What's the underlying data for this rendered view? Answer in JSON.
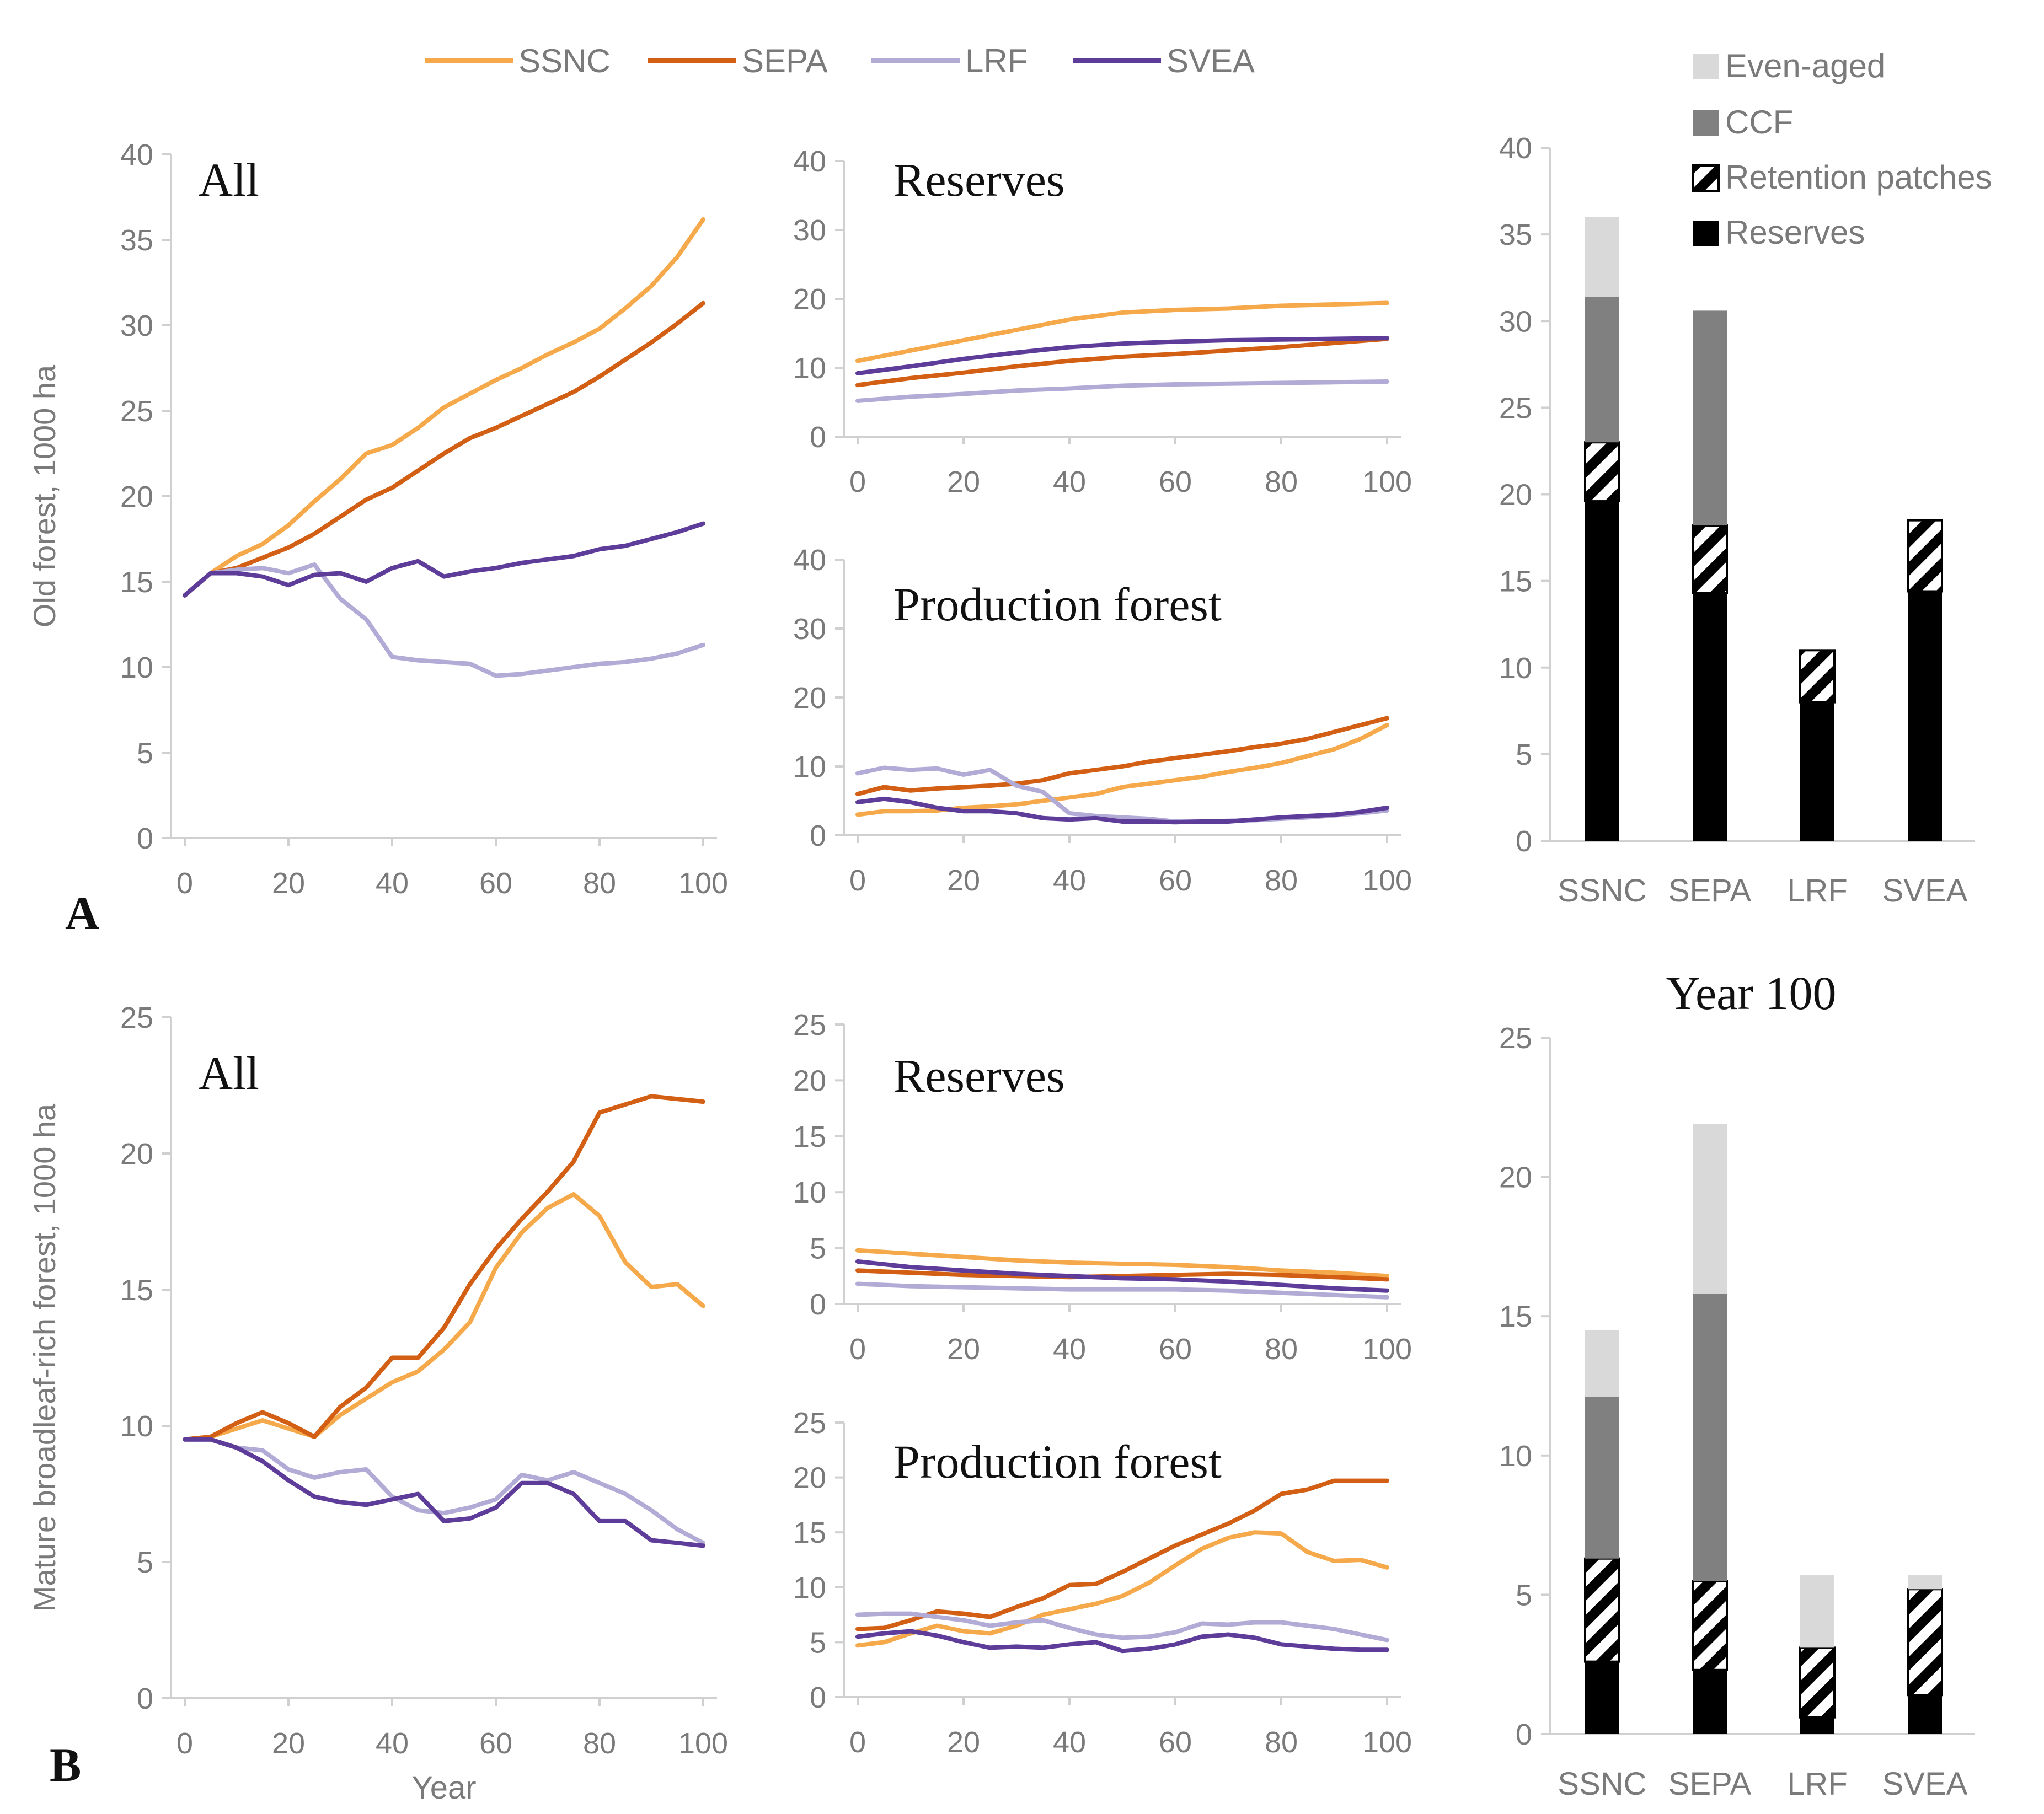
{
  "colors": {
    "SSNC": "#f5a94a",
    "SEPA": "#d25f14",
    "LRF": "#b2abd6",
    "SVEA": "#5e3c99",
    "even_aged": "#d9d9d9",
    "ccf": "#808080",
    "retention": "#000000",
    "reserves": "#000000"
  },
  "legend": {
    "series": [
      "SSNC",
      "SEPA",
      "LRF",
      "SVEA"
    ],
    "bars": [
      "Even-aged",
      "CCF",
      "Retention patches",
      "Reserves"
    ]
  },
  "panel_labels": {
    "a": "A",
    "b": "B"
  },
  "bar_panel_title": "Year 100",
  "chart_data": [
    {
      "id": "A-all",
      "type": "line",
      "title": "All",
      "panel": "A",
      "ylabel": "Old forest,  1000 ha",
      "xlabel": "",
      "ylim": [
        0,
        40
      ],
      "yticks": [
        0,
        5,
        10,
        15,
        20,
        25,
        30,
        35,
        40
      ],
      "xlim": [
        0,
        100
      ],
      "xticks": [
        0,
        20,
        40,
        60,
        80,
        100
      ],
      "x": [
        0,
        5,
        10,
        15,
        20,
        25,
        30,
        35,
        40,
        45,
        50,
        55,
        60,
        65,
        70,
        75,
        80,
        85,
        90,
        95,
        100
      ],
      "series": [
        {
          "name": "SSNC",
          "values": [
            14.2,
            15.5,
            16.5,
            17.2,
            18.3,
            19.7,
            21,
            22.5,
            23,
            24,
            25.2,
            26,
            26.8,
            27.5,
            28.3,
            29,
            29.8,
            31,
            32.3,
            34,
            36.2
          ]
        },
        {
          "name": "SEPA",
          "values": [
            14.2,
            15.5,
            15.8,
            16.4,
            17,
            17.8,
            18.8,
            19.8,
            20.5,
            21.5,
            22.5,
            23.4,
            24,
            24.7,
            25.4,
            26.1,
            27,
            28,
            29,
            30.1,
            31.3
          ]
        },
        {
          "name": "LRF",
          "values": [
            14.2,
            15.5,
            15.7,
            15.8,
            15.5,
            16,
            14,
            12.8,
            10.6,
            10.4,
            10.3,
            10.2,
            9.5,
            9.6,
            9.8,
            10,
            10.2,
            10.3,
            10.5,
            10.8,
            11.3
          ]
        },
        {
          "name": "SVEA",
          "values": [
            14.2,
            15.5,
            15.5,
            15.3,
            14.8,
            15.4,
            15.5,
            15,
            15.8,
            16.2,
            15.3,
            15.6,
            15.8,
            16.1,
            16.3,
            16.5,
            16.9,
            17.1,
            17.5,
            17.9,
            18.4
          ]
        }
      ]
    },
    {
      "id": "A-res",
      "type": "line",
      "title": "Reserves",
      "panel": "A",
      "ylim": [
        0,
        40
      ],
      "yticks": [
        0,
        10,
        20,
        30,
        40
      ],
      "xlim": [
        0,
        100
      ],
      "xticks": [
        0,
        20,
        40,
        60,
        80,
        100
      ],
      "x": [
        0,
        10,
        20,
        30,
        40,
        50,
        60,
        70,
        80,
        90,
        100
      ],
      "series": [
        {
          "name": "SSNC",
          "values": [
            11,
            12.5,
            14,
            15.5,
            17,
            18,
            18.4,
            18.6,
            19,
            19.2,
            19.4
          ]
        },
        {
          "name": "SEPA",
          "values": [
            7.5,
            8.5,
            9.3,
            10.2,
            11,
            11.6,
            12,
            12.5,
            13,
            13.6,
            14.2
          ]
        },
        {
          "name": "LRF",
          "values": [
            5.2,
            5.8,
            6.2,
            6.7,
            7,
            7.4,
            7.6,
            7.7,
            7.8,
            7.9,
            8
          ]
        },
        {
          "name": "SVEA",
          "values": [
            9.2,
            10.2,
            11.3,
            12.2,
            13,
            13.5,
            13.8,
            14,
            14.1,
            14.2,
            14.3
          ]
        }
      ]
    },
    {
      "id": "A-prod",
      "type": "line",
      "title": "Production forest",
      "panel": "A",
      "ylim": [
        0,
        40
      ],
      "yticks": [
        0,
        10,
        20,
        30,
        40
      ],
      "xlim": [
        0,
        100
      ],
      "xticks": [
        0,
        20,
        40,
        60,
        80,
        100
      ],
      "x": [
        0,
        5,
        10,
        15,
        20,
        25,
        30,
        35,
        40,
        45,
        50,
        55,
        60,
        65,
        70,
        75,
        80,
        85,
        90,
        95,
        100
      ],
      "series": [
        {
          "name": "SSNC",
          "values": [
            3,
            3.5,
            3.5,
            3.6,
            4,
            4.2,
            4.5,
            5,
            5.5,
            6,
            7,
            7.5,
            8,
            8.5,
            9.2,
            9.8,
            10.5,
            11.5,
            12.5,
            14,
            16
          ]
        },
        {
          "name": "SEPA",
          "values": [
            6,
            7,
            6.5,
            6.8,
            7,
            7.2,
            7.5,
            8,
            9,
            9.5,
            10,
            10.7,
            11.2,
            11.7,
            12.2,
            12.8,
            13.3,
            14,
            15,
            16,
            17
          ]
        },
        {
          "name": "LRF",
          "values": [
            9,
            9.8,
            9.5,
            9.7,
            8.8,
            9.5,
            7.2,
            6.3,
            3.2,
            2.8,
            2.6,
            2.4,
            2,
            2,
            2.1,
            2.2,
            2.4,
            2.6,
            2.9,
            3.2,
            3.6
          ]
        },
        {
          "name": "SVEA",
          "values": [
            4.8,
            5.3,
            4.8,
            4,
            3.5,
            3.5,
            3.2,
            2.5,
            2.3,
            2.5,
            2,
            2,
            1.9,
            2,
            2,
            2.3,
            2.6,
            2.8,
            3,
            3.4,
            4
          ]
        }
      ]
    },
    {
      "id": "A-bar",
      "type": "bar",
      "panel": "A",
      "ylim": [
        0,
        40
      ],
      "yticks": [
        0,
        5,
        10,
        15,
        20,
        25,
        30,
        35,
        40
      ],
      "categories": [
        "SSNC",
        "SEPA",
        "LRF",
        "SVEA"
      ],
      "series": [
        {
          "name": "Reserves",
          "values": [
            19.6,
            14.3,
            8.0,
            14.4
          ]
        },
        {
          "name": "Retention patches",
          "values": [
            3.4,
            3.9,
            3.0,
            4.1
          ]
        },
        {
          "name": "CCF",
          "values": [
            8.4,
            12.4,
            0,
            0
          ]
        },
        {
          "name": "Even-aged",
          "values": [
            4.6,
            0,
            0,
            0
          ]
        }
      ]
    },
    {
      "id": "B-all",
      "type": "line",
      "title": "All",
      "panel": "B",
      "ylabel": "Mature broadleaf-rich forest, 1000 ha",
      "xlabel": "Year",
      "ylim": [
        0,
        25
      ],
      "yticks": [
        0,
        5,
        10,
        15,
        20,
        25
      ],
      "xlim": [
        0,
        100
      ],
      "xticks": [
        0,
        20,
        40,
        60,
        80,
        100
      ],
      "x": [
        0,
        5,
        10,
        15,
        20,
        25,
        30,
        35,
        40,
        45,
        50,
        55,
        60,
        65,
        70,
        75,
        80,
        85,
        90,
        95,
        100
      ],
      "series": [
        {
          "name": "SSNC",
          "values": [
            9.5,
            9.6,
            9.9,
            10.2,
            9.9,
            9.6,
            10.4,
            11,
            11.6,
            12,
            12.8,
            13.8,
            15.8,
            17.1,
            18,
            18.5,
            17.7,
            16,
            15.1,
            15.2,
            14.4
          ]
        },
        {
          "name": "SEPA",
          "values": [
            9.5,
            9.6,
            10.1,
            10.5,
            10.1,
            9.6,
            10.7,
            11.4,
            12.5,
            12.5,
            13.6,
            15.2,
            16.5,
            17.6,
            18.6,
            19.7,
            21.5,
            21.8,
            22.1,
            22,
            21.9
          ]
        },
        {
          "name": "LRF",
          "values": [
            9.5,
            9.5,
            9.2,
            9.1,
            8.4,
            8.1,
            8.3,
            8.4,
            7.4,
            6.9,
            6.8,
            7.0,
            7.3,
            8.2,
            8.0,
            8.3,
            7.9,
            7.5,
            6.9,
            6.2,
            5.7
          ]
        },
        {
          "name": "SVEA",
          "values": [
            9.5,
            9.5,
            9.2,
            8.7,
            8.0,
            7.4,
            7.2,
            7.1,
            7.3,
            7.5,
            6.5,
            6.6,
            7.0,
            7.9,
            7.9,
            7.5,
            6.5,
            6.5,
            5.8,
            5.7,
            5.6
          ]
        }
      ]
    },
    {
      "id": "B-res",
      "type": "line",
      "title": "Reserves",
      "panel": "B",
      "ylim": [
        0,
        25
      ],
      "yticks": [
        0,
        5,
        10,
        15,
        20,
        25
      ],
      "xlim": [
        0,
        100
      ],
      "xticks": [
        0,
        20,
        40,
        60,
        80,
        100
      ],
      "x": [
        0,
        10,
        20,
        30,
        40,
        50,
        60,
        70,
        80,
        90,
        100
      ],
      "series": [
        {
          "name": "SSNC",
          "values": [
            4.8,
            4.5,
            4.2,
            3.9,
            3.7,
            3.6,
            3.5,
            3.3,
            3.0,
            2.8,
            2.5
          ]
        },
        {
          "name": "SEPA",
          "values": [
            3.0,
            2.8,
            2.6,
            2.5,
            2.4,
            2.5,
            2.6,
            2.7,
            2.6,
            2.4,
            2.2
          ]
        },
        {
          "name": "LRF",
          "values": [
            1.8,
            1.6,
            1.5,
            1.4,
            1.3,
            1.3,
            1.3,
            1.2,
            1.0,
            0.8,
            0.6
          ]
        },
        {
          "name": "SVEA",
          "values": [
            3.8,
            3.3,
            3.0,
            2.7,
            2.5,
            2.3,
            2.2,
            2.0,
            1.7,
            1.4,
            1.2
          ]
        }
      ]
    },
    {
      "id": "B-prod",
      "type": "line",
      "title": "Production forest",
      "panel": "B",
      "ylim": [
        0,
        25
      ],
      "yticks": [
        0,
        5,
        10,
        15,
        20,
        25
      ],
      "xlim": [
        0,
        100
      ],
      "xticks": [
        0,
        20,
        40,
        60,
        80,
        100
      ],
      "x": [
        0,
        5,
        10,
        15,
        20,
        25,
        30,
        35,
        40,
        45,
        50,
        55,
        60,
        65,
        70,
        75,
        80,
        85,
        90,
        95,
        100
      ],
      "series": [
        {
          "name": "SSNC",
          "values": [
            4.7,
            5.0,
            5.8,
            6.5,
            6.0,
            5.8,
            6.5,
            7.5,
            8.0,
            8.5,
            9.2,
            10.4,
            12.0,
            13.5,
            14.5,
            15.0,
            14.9,
            13.2,
            12.4,
            12.5,
            11.8
          ]
        },
        {
          "name": "SEPA",
          "values": [
            6.2,
            6.3,
            7.0,
            7.8,
            7.6,
            7.3,
            8.2,
            9.0,
            10.2,
            10.3,
            11.4,
            12.6,
            13.8,
            14.8,
            15.8,
            17.0,
            18.5,
            18.9,
            19.7,
            19.7,
            19.7
          ]
        },
        {
          "name": "LRF",
          "values": [
            7.5,
            7.6,
            7.6,
            7.3,
            7.0,
            6.5,
            6.8,
            7.0,
            6.3,
            5.7,
            5.4,
            5.5,
            5.9,
            6.7,
            6.6,
            6.8,
            6.8,
            6.5,
            6.2,
            5.7,
            5.2
          ]
        },
        {
          "name": "SVEA",
          "values": [
            5.5,
            5.8,
            6.0,
            5.6,
            5.0,
            4.5,
            4.6,
            4.5,
            4.8,
            5.0,
            4.2,
            4.4,
            4.8,
            5.5,
            5.7,
            5.4,
            4.8,
            4.6,
            4.4,
            4.3,
            4.3
          ]
        }
      ]
    },
    {
      "id": "B-bar",
      "type": "bar",
      "panel": "B",
      "ylim": [
        0,
        25
      ],
      "yticks": [
        0,
        5,
        10,
        15,
        20,
        25
      ],
      "categories": [
        "SSNC",
        "SEPA",
        "LRF",
        "SVEA"
      ],
      "series": [
        {
          "name": "Reserves",
          "values": [
            2.6,
            2.3,
            0.6,
            1.4
          ]
        },
        {
          "name": "Retention patches",
          "values": [
            3.7,
            3.2,
            2.5,
            3.8
          ]
        },
        {
          "name": "CCF",
          "values": [
            5.8,
            10.3,
            0,
            0
          ]
        },
        {
          "name": "Even-aged",
          "values": [
            2.4,
            6.1,
            2.6,
            0.5
          ]
        }
      ]
    }
  ]
}
